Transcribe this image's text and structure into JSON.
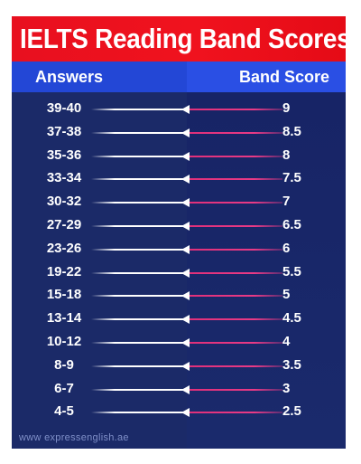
{
  "title": "IELTS Reading Band Scores",
  "headers": {
    "answers": "Answers",
    "band_score": "Band Score"
  },
  "rows": [
    {
      "answers": "39-40",
      "score": "9"
    },
    {
      "answers": "37-38",
      "score": "8.5"
    },
    {
      "answers": "35-36",
      "score": "8"
    },
    {
      "answers": "33-34",
      "score": "7.5"
    },
    {
      "answers": "30-32",
      "score": "7"
    },
    {
      "answers": "27-29",
      "score": "6.5"
    },
    {
      "answers": "23-26",
      "score": "6"
    },
    {
      "answers": "19-22",
      "score": "5.5"
    },
    {
      "answers": "15-18",
      "score": "5"
    },
    {
      "answers": "13-14",
      "score": "4.5"
    },
    {
      "answers": "10-12",
      "score": "4"
    },
    {
      "answers": "8-9",
      "score": "3.5"
    },
    {
      "answers": "6-7",
      "score": "3"
    },
    {
      "answers": "4-5",
      "score": "2.5"
    }
  ],
  "watermark": "www  expressenglish.ae",
  "colors": {
    "title_bg": "#e8101f",
    "header_left_bg": "#2347d6",
    "header_right_bg": "#2a4fe4",
    "body_bg": "#1b2a68",
    "line_left": "#ffffff",
    "line_right": "#e0307a"
  }
}
